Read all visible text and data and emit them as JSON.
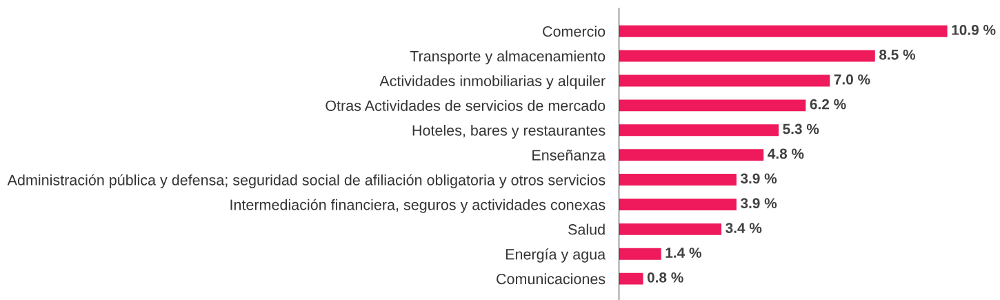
{
  "chart_data": {
    "type": "bar",
    "orientation": "horizontal",
    "categories": [
      "Comercio",
      "Transporte y almacenamiento",
      "Actividades inmobiliarias y alquiler",
      "Otras Actividades de servicios de mercado",
      "Hoteles, bares y restaurantes",
      "Enseñanza",
      "Administración pública y defensa; seguridad social de afiliación obligatoria y otros servicios",
      "Intermediación financiera, seguros y actividades conexas",
      "Salud",
      "Energía y agua",
      "Comunicaciones"
    ],
    "values": [
      10.9,
      8.5,
      7.0,
      6.2,
      5.3,
      4.8,
      3.9,
      3.9,
      3.4,
      1.4,
      0.8
    ],
    "value_labels": [
      "10.9 %",
      "8.5 %",
      "7.0 %",
      "6.2 %",
      "5.3 %",
      "4.8 %",
      "3.9 %",
      "3.9 %",
      "3.4 %",
      "1.4 %",
      "0.8 %"
    ],
    "color": "#ee1a5b",
    "grid": false,
    "legend": false,
    "tick_labels": "y"
  }
}
